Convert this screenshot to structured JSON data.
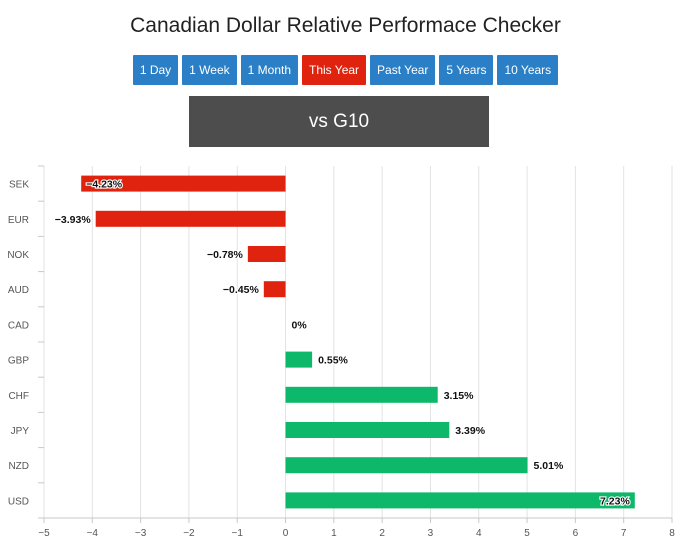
{
  "title": "Canadian Dollar Relative Performace Checker",
  "buttons": [
    {
      "label": "1 Day",
      "active": false
    },
    {
      "label": "1 Week",
      "active": false
    },
    {
      "label": "1 Month",
      "active": false
    },
    {
      "label": "This Year",
      "active": true
    },
    {
      "label": "Past Year",
      "active": false
    },
    {
      "label": "5 Years",
      "active": false
    },
    {
      "label": "10 Years",
      "active": false
    }
  ],
  "banner": "vs G10",
  "colors": {
    "negative": "#e0230e",
    "positive": "#0db86a",
    "active_button": "#e0230e",
    "button": "#2a7fc6",
    "banner": "#4d4d4d"
  },
  "chart_data": {
    "type": "bar",
    "orientation": "horizontal",
    "categories": [
      "SEK",
      "EUR",
      "NOK",
      "AUD",
      "CAD",
      "GBP",
      "CHF",
      "JPY",
      "NZD",
      "USD"
    ],
    "values": [
      -4.23,
      -3.93,
      -0.78,
      -0.45,
      0,
      0.55,
      3.15,
      3.39,
      5.01,
      7.23
    ],
    "data_labels": [
      "−4.23%",
      "−3.93%",
      "−0.78%",
      "−0.45%",
      "0%",
      "0.55%",
      "3.15%",
      "3.39%",
      "5.01%",
      "7.23%"
    ],
    "xlim": [
      -5,
      8
    ],
    "xticks": [
      -5,
      -4,
      -3,
      -2,
      -1,
      0,
      1,
      2,
      3,
      4,
      5,
      6,
      7,
      8
    ],
    "xtick_labels": [
      "−5",
      "−4",
      "−3",
      "−2",
      "−1",
      "0",
      "1",
      "2",
      "3",
      "4",
      "5",
      "6",
      "7",
      "8"
    ],
    "grid": "vertical",
    "legend": "none"
  }
}
